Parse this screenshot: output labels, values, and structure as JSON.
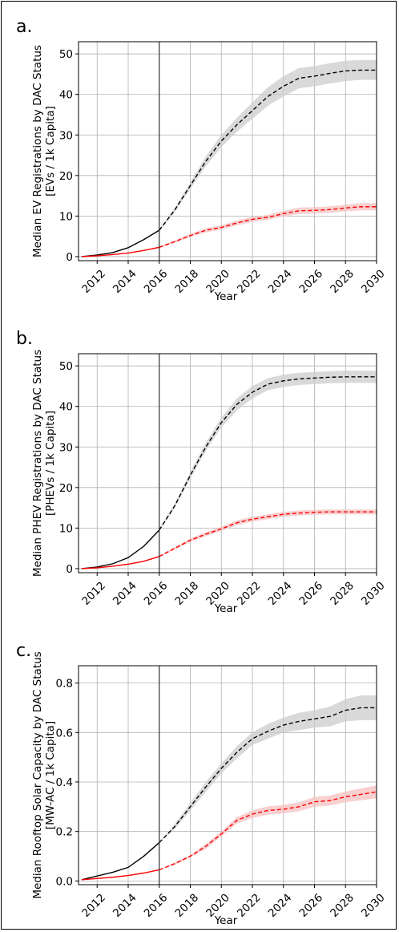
{
  "chart_data": [
    {
      "type": "line",
      "panel_label": "a.",
      "ylabel_line1": "Median EV Registrations by DAC Status",
      "ylabel_line2": "[EVs / 1k Capita]",
      "xlabel": "Year",
      "x": [
        2011,
        2012,
        2013,
        2014,
        2015,
        2016,
        2017,
        2018,
        2019,
        2020,
        2021,
        2022,
        2023,
        2024,
        2025,
        2026,
        2027,
        2028,
        2029,
        2030
      ],
      "xticks": [
        "2012",
        "2014",
        "2016",
        "2018",
        "2020",
        "2022",
        "2024",
        "2026",
        "2028",
        "2030"
      ],
      "yticks": [
        "0",
        "10",
        "20",
        "30",
        "40",
        "50"
      ],
      "ylim": [
        -1,
        53
      ],
      "xlim": [
        2010.8,
        2030
      ],
      "vline": 2016,
      "grid": true,
      "series": [
        {
          "color": "#000000",
          "band_color": "#cccccc",
          "values": [
            0,
            0.4,
            1.0,
            2.2,
            4.2,
            6.5,
            11.5,
            17.5,
            23.5,
            28.5,
            32.5,
            36.0,
            39.5,
            42.0,
            44.0,
            44.5,
            45.2,
            45.8,
            46.0,
            46.0
          ],
          "lower": [
            0,
            0.4,
            1.0,
            2.2,
            4.2,
            6.2,
            11.0,
            16.7,
            22.3,
            27.0,
            30.8,
            34.0,
            37.2,
            39.5,
            41.5,
            42.0,
            42.7,
            43.3,
            43.6,
            43.6
          ],
          "upper": [
            0,
            0.4,
            1.0,
            2.2,
            4.2,
            6.8,
            12.0,
            18.3,
            24.7,
            30.0,
            34.2,
            38.0,
            41.8,
            44.5,
            46.5,
            47.0,
            47.7,
            48.3,
            48.5,
            48.5
          ]
        },
        {
          "color": "#ff0000",
          "band_color": "#f5c0c0",
          "values": [
            0,
            0.2,
            0.5,
            0.9,
            1.5,
            2.3,
            3.7,
            5.2,
            6.5,
            7.2,
            8.3,
            9.2,
            9.7,
            10.6,
            11.3,
            11.4,
            11.6,
            12.0,
            12.3,
            12.3
          ],
          "lower": [
            0,
            0.2,
            0.5,
            0.9,
            1.5,
            2.1,
            3.4,
            4.8,
            6.0,
            6.7,
            7.7,
            8.6,
            9.1,
            9.9,
            10.5,
            10.6,
            10.8,
            11.2,
            11.4,
            11.4
          ],
          "upper": [
            0,
            0.2,
            0.5,
            0.9,
            1.5,
            2.5,
            4.0,
            5.6,
            7.0,
            7.7,
            8.9,
            9.8,
            10.3,
            11.3,
            12.1,
            12.2,
            12.4,
            12.8,
            13.2,
            13.2
          ]
        }
      ]
    },
    {
      "type": "line",
      "panel_label": "b.",
      "ylabel_line1": "Median PHEV Registrations by DAC Status",
      "ylabel_line2": "[PHEVs / 1k Capita]",
      "xlabel": "Year",
      "x": [
        2011,
        2012,
        2013,
        2014,
        2015,
        2016,
        2017,
        2018,
        2019,
        2020,
        2021,
        2022,
        2023,
        2024,
        2025,
        2026,
        2027,
        2028,
        2029,
        2030
      ],
      "xticks": [
        "2012",
        "2014",
        "2016",
        "2018",
        "2020",
        "2022",
        "2024",
        "2026",
        "2028",
        "2030"
      ],
      "yticks": [
        "0",
        "10",
        "20",
        "30",
        "40",
        "50"
      ],
      "ylim": [
        -1,
        53
      ],
      "xlim": [
        2010.8,
        2030
      ],
      "vline": 2016,
      "grid": true,
      "series": [
        {
          "color": "#000000",
          "band_color": "#cccccc",
          "values": [
            0,
            0.4,
            1.2,
            2.7,
            5.5,
            9.5,
            15.5,
            23.0,
            30.0,
            36.0,
            40.5,
            43.5,
            45.5,
            46.3,
            46.8,
            47.0,
            47.2,
            47.3,
            47.3,
            47.3
          ],
          "lower": [
            0,
            0.4,
            1.2,
            2.7,
            5.5,
            9.2,
            15.0,
            22.2,
            29.0,
            34.8,
            39.0,
            42.0,
            44.0,
            44.8,
            45.3,
            45.5,
            45.7,
            45.8,
            45.8,
            45.8
          ],
          "upper": [
            0,
            0.4,
            1.2,
            2.7,
            5.5,
            9.8,
            16.0,
            23.8,
            31.0,
            37.2,
            42.0,
            45.0,
            47.0,
            47.8,
            48.3,
            48.5,
            48.7,
            48.8,
            48.8,
            48.8
          ]
        },
        {
          "color": "#ff0000",
          "band_color": "#f5c0c0",
          "values": [
            0,
            0.2,
            0.6,
            1.1,
            1.8,
            3.0,
            5.0,
            7.0,
            8.5,
            9.8,
            11.3,
            12.2,
            12.8,
            13.4,
            13.7,
            13.9,
            14.0,
            14.0,
            14.0,
            14.0
          ],
          "lower": [
            0,
            0.2,
            0.6,
            1.1,
            1.8,
            2.8,
            4.7,
            6.6,
            8.0,
            9.3,
            10.7,
            11.6,
            12.2,
            12.8,
            13.1,
            13.3,
            13.4,
            13.4,
            13.4,
            13.4
          ],
          "upper": [
            0,
            0.2,
            0.6,
            1.1,
            1.8,
            3.2,
            5.3,
            7.4,
            9.0,
            10.3,
            11.9,
            12.8,
            13.4,
            14.0,
            14.3,
            14.5,
            14.6,
            14.6,
            14.6,
            14.6
          ]
        }
      ]
    },
    {
      "type": "line",
      "panel_label": "c.",
      "ylabel_line1": "Median Rooftop Solar Capacity by DAC Status",
      "ylabel_line2": "[MW-AC / 1k Capita]",
      "xlabel": "Year",
      "x": [
        2011,
        2012,
        2013,
        2014,
        2015,
        2016,
        2017,
        2018,
        2019,
        2020,
        2021,
        2022,
        2023,
        2024,
        2025,
        2026,
        2027,
        2028,
        2029,
        2030
      ],
      "xticks": [
        "2012",
        "2014",
        "2016",
        "2018",
        "2020",
        "2022",
        "2024",
        "2026",
        "2028",
        "2030"
      ],
      "yticks": [
        "0.0",
        "0.2",
        "0.4",
        "0.6",
        "0.8"
      ],
      "ylim": [
        -0.015,
        0.87
      ],
      "xlim": [
        2010.8,
        2030
      ],
      "vline": 2016,
      "grid": true,
      "series": [
        {
          "color": "#000000",
          "band_color": "#cccccc",
          "values": [
            0.005,
            0.02,
            0.035,
            0.055,
            0.1,
            0.155,
            0.22,
            0.3,
            0.38,
            0.455,
            0.52,
            0.575,
            0.605,
            0.63,
            0.645,
            0.655,
            0.665,
            0.69,
            0.7,
            0.7
          ],
          "lower": [
            0.005,
            0.02,
            0.035,
            0.055,
            0.1,
            0.155,
            0.21,
            0.285,
            0.36,
            0.435,
            0.495,
            0.55,
            0.575,
            0.6,
            0.61,
            0.62,
            0.625,
            0.645,
            0.65,
            0.65
          ],
          "upper": [
            0.005,
            0.02,
            0.035,
            0.055,
            0.1,
            0.155,
            0.23,
            0.315,
            0.4,
            0.475,
            0.545,
            0.6,
            0.635,
            0.66,
            0.68,
            0.69,
            0.705,
            0.735,
            0.75,
            0.75
          ]
        },
        {
          "color": "#ff0000",
          "band_color": "#f5c0c0",
          "values": [
            0.005,
            0.01,
            0.015,
            0.022,
            0.032,
            0.045,
            0.07,
            0.1,
            0.14,
            0.19,
            0.245,
            0.27,
            0.285,
            0.29,
            0.3,
            0.32,
            0.325,
            0.34,
            0.35,
            0.36
          ],
          "lower": [
            0.005,
            0.01,
            0.015,
            0.022,
            0.032,
            0.045,
            0.065,
            0.095,
            0.13,
            0.18,
            0.232,
            0.255,
            0.268,
            0.273,
            0.282,
            0.3,
            0.305,
            0.318,
            0.326,
            0.334
          ],
          "upper": [
            0.005,
            0.01,
            0.015,
            0.022,
            0.032,
            0.045,
            0.075,
            0.105,
            0.15,
            0.2,
            0.258,
            0.285,
            0.302,
            0.307,
            0.318,
            0.34,
            0.345,
            0.362,
            0.374,
            0.386
          ]
        }
      ]
    }
  ]
}
